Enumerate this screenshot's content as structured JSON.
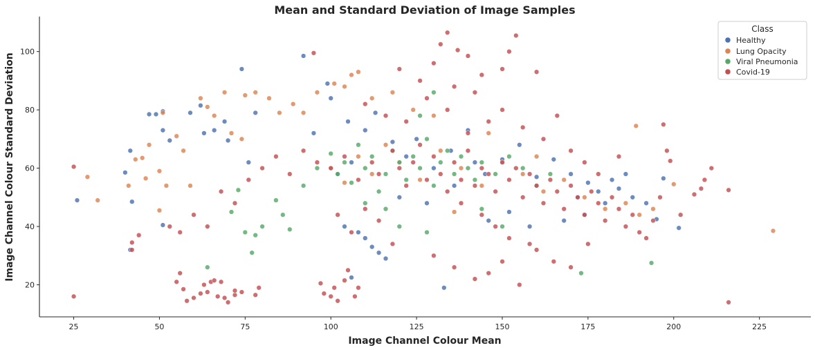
{
  "chart_data": {
    "type": "scatter",
    "title": "Mean and Standard Deviation of Image Samples",
    "xlabel": "Image Channel Colour Mean",
    "ylabel": "Image Channel Colour Standard Deviation",
    "xlim": [
      15,
      240
    ],
    "ylim": [
      9,
      112
    ],
    "x_ticks": [
      25,
      50,
      75,
      100,
      125,
      150,
      175,
      200,
      225
    ],
    "y_ticks": [
      20,
      40,
      60,
      80,
      100
    ],
    "grid": false,
    "legend": {
      "title": "Class",
      "placement": "top-right",
      "entries": [
        "Healthy",
        "Lung Opacity",
        "Viral Pneumonia",
        "Covid-19"
      ]
    },
    "series": [
      {
        "name": "Healthy",
        "color": "#4c72b0",
        "points": [
          [
            26,
            49
          ],
          [
            40,
            58.5
          ],
          [
            41.5,
            66
          ],
          [
            42,
            48.5
          ],
          [
            41.5,
            32
          ],
          [
            47,
            78.5
          ],
          [
            49,
            78.5
          ],
          [
            51,
            79.5
          ],
          [
            51,
            73
          ],
          [
            51,
            40.5
          ],
          [
            53,
            69.5
          ],
          [
            59,
            79
          ],
          [
            62,
            81.5
          ],
          [
            63,
            72
          ],
          [
            66,
            73
          ],
          [
            69,
            76
          ],
          [
            70,
            69.5
          ],
          [
            74,
            94
          ],
          [
            76,
            62
          ],
          [
            78,
            79
          ],
          [
            92,
            98.5
          ],
          [
            99,
            89
          ],
          [
            95,
            72
          ],
          [
            100,
            84
          ],
          [
            105,
            76
          ],
          [
            102,
            58
          ],
          [
            106,
            62
          ],
          [
            110,
            73
          ],
          [
            113,
            79
          ],
          [
            118,
            69
          ],
          [
            122,
            64
          ],
          [
            125,
            70
          ],
          [
            130,
            60
          ],
          [
            135,
            66
          ],
          [
            140,
            73
          ],
          [
            145,
            58
          ],
          [
            150,
            63
          ],
          [
            155,
            68
          ],
          [
            160,
            57
          ],
          [
            165,
            63
          ],
          [
            170,
            58
          ],
          [
            175,
            55
          ],
          [
            178,
            52
          ],
          [
            180,
            48
          ],
          [
            184,
            53
          ],
          [
            188,
            50
          ],
          [
            192,
            48
          ],
          [
            195,
            42.5
          ],
          [
            201.5,
            39.5
          ],
          [
            197,
            56.5
          ],
          [
            112,
            33
          ],
          [
            114,
            31
          ],
          [
            116,
            29
          ],
          [
            110,
            36
          ],
          [
            108,
            38
          ],
          [
            104,
            40
          ],
          [
            106,
            22.5
          ],
          [
            133,
            19
          ],
          [
            146,
            42
          ],
          [
            152,
            45
          ],
          [
            158,
            40
          ],
          [
            168,
            42
          ],
          [
            172,
            50
          ],
          [
            174,
            44
          ],
          [
            182,
            56
          ],
          [
            186,
            58
          ],
          [
            120,
            50
          ],
          [
            128,
            48
          ],
          [
            136,
            54
          ],
          [
            142,
            62
          ]
        ]
      },
      {
        "name": "Lung Opacity",
        "color": "#dd8452",
        "points": [
          [
            29,
            57
          ],
          [
            32,
            49
          ],
          [
            41,
            54
          ],
          [
            43,
            63
          ],
          [
            45,
            63.5
          ],
          [
            46,
            56.5
          ],
          [
            47,
            68
          ],
          [
            50,
            59
          ],
          [
            50,
            45.5
          ],
          [
            51,
            79
          ],
          [
            52,
            54
          ],
          [
            55,
            71
          ],
          [
            57,
            66
          ],
          [
            59,
            54
          ],
          [
            62,
            84
          ],
          [
            64,
            81
          ],
          [
            66,
            78
          ],
          [
            69,
            86
          ],
          [
            71,
            72
          ],
          [
            74,
            70
          ],
          [
            75,
            85
          ],
          [
            78,
            86
          ],
          [
            82,
            84
          ],
          [
            85,
            79
          ],
          [
            89,
            82
          ],
          [
            92,
            79
          ],
          [
            96,
            86
          ],
          [
            101,
            89
          ],
          [
            104,
            88
          ],
          [
            106,
            92
          ],
          [
            108,
            93
          ],
          [
            112,
            84
          ],
          [
            118,
            86
          ],
          [
            124,
            80
          ],
          [
            130,
            78
          ],
          [
            100,
            60
          ],
          [
            104,
            55
          ],
          [
            108,
            64
          ],
          [
            112,
            58
          ],
          [
            116,
            68
          ],
          [
            120,
            62
          ],
          [
            126,
            56
          ],
          [
            132,
            66
          ],
          [
            138,
            60
          ],
          [
            144,
            54
          ],
          [
            150,
            62
          ],
          [
            156,
            58
          ],
          [
            162,
            52
          ],
          [
            168,
            56
          ],
          [
            174,
            50
          ],
          [
            180,
            46
          ],
          [
            186,
            48
          ],
          [
            190,
            44
          ],
          [
            194,
            46
          ],
          [
            200,
            54.5
          ],
          [
            229,
            38.5
          ],
          [
            189,
            74.5
          ],
          [
            160,
            64
          ],
          [
            146,
            72
          ],
          [
            136,
            45
          ]
        ]
      },
      {
        "name": "Viral Pneumonia",
        "color": "#55a868",
        "points": [
          [
            64,
            26
          ],
          [
            71,
            45
          ],
          [
            73,
            52.5
          ],
          [
            75,
            38
          ],
          [
            77,
            31
          ],
          [
            78,
            37
          ],
          [
            80,
            40
          ],
          [
            84,
            49
          ],
          [
            86,
            44
          ],
          [
            88,
            39
          ],
          [
            92,
            54
          ],
          [
            96,
            60
          ],
          [
            100,
            65
          ],
          [
            102,
            58
          ],
          [
            104,
            62
          ],
          [
            106,
            55
          ],
          [
            108,
            68
          ],
          [
            110,
            60
          ],
          [
            112,
            64
          ],
          [
            114,
            52
          ],
          [
            116,
            58
          ],
          [
            118,
            66
          ],
          [
            120,
            62
          ],
          [
            122,
            56
          ],
          [
            124,
            64
          ],
          [
            126,
            60
          ],
          [
            128,
            70
          ],
          [
            130,
            54
          ],
          [
            132,
            62
          ],
          [
            134,
            66
          ],
          [
            136,
            58
          ],
          [
            138,
            64
          ],
          [
            140,
            60
          ],
          [
            142,
            56
          ],
          [
            144,
            62
          ],
          [
            148,
            58
          ],
          [
            152,
            64
          ],
          [
            156,
            60
          ],
          [
            160,
            54
          ],
          [
            164,
            58
          ],
          [
            173,
            24
          ],
          [
            193.5,
            27.5
          ],
          [
            126,
            78
          ],
          [
            130,
            86
          ],
          [
            116,
            46
          ],
          [
            110,
            48
          ],
          [
            120,
            40
          ],
          [
            128,
            38
          ],
          [
            144,
            46
          ],
          [
            150,
            40
          ]
        ]
      },
      {
        "name": "Covid-19",
        "color": "#c44e52",
        "points": [
          [
            25,
            60.5
          ],
          [
            25,
            16
          ],
          [
            42,
            32
          ],
          [
            42,
            34.5
          ],
          [
            44,
            37
          ],
          [
            53,
            40
          ],
          [
            55,
            21
          ],
          [
            56,
            24
          ],
          [
            57,
            18.5
          ],
          [
            58,
            14.5
          ],
          [
            60,
            15.5
          ],
          [
            62,
            17
          ],
          [
            63,
            20
          ],
          [
            64,
            17.5
          ],
          [
            65,
            21
          ],
          [
            66,
            21.5
          ],
          [
            67,
            16
          ],
          [
            68,
            21
          ],
          [
            69,
            15.5
          ],
          [
            70,
            14
          ],
          [
            72,
            16.5
          ],
          [
            74,
            17.5
          ],
          [
            78,
            16.5
          ],
          [
            79,
            19
          ],
          [
            72,
            18
          ],
          [
            56,
            38
          ],
          [
            60,
            44
          ],
          [
            64,
            40
          ],
          [
            68,
            52
          ],
          [
            72,
            48
          ],
          [
            76,
            56
          ],
          [
            80,
            60
          ],
          [
            84,
            64
          ],
          [
            88,
            58
          ],
          [
            92,
            66
          ],
          [
            96,
            62
          ],
          [
            97,
            20.5
          ],
          [
            98,
            17
          ],
          [
            100,
            16
          ],
          [
            101,
            19
          ],
          [
            102,
            14.5
          ],
          [
            104,
            21.5
          ],
          [
            105,
            25
          ],
          [
            107,
            16
          ],
          [
            108,
            19
          ],
          [
            95,
            99.5
          ],
          [
            130,
            96
          ],
          [
            132,
            102.5
          ],
          [
            134,
            106.5
          ],
          [
            137,
            100.5
          ],
          [
            140,
            98.5
          ],
          [
            154,
            105.5
          ],
          [
            152,
            100
          ],
          [
            144,
            92
          ],
          [
            150,
            94
          ],
          [
            160,
            93
          ],
          [
            120,
            94
          ],
          [
            126,
            90
          ],
          [
            136,
            88
          ],
          [
            142,
            86
          ],
          [
            100,
            60
          ],
          [
            104,
            64
          ],
          [
            108,
            56
          ],
          [
            112,
            62
          ],
          [
            114,
            58
          ],
          [
            118,
            66
          ],
          [
            120,
            60
          ],
          [
            122,
            54
          ],
          [
            124,
            62
          ],
          [
            126,
            68
          ],
          [
            128,
            56
          ],
          [
            130,
            64
          ],
          [
            132,
            58
          ],
          [
            134,
            52
          ],
          [
            136,
            62
          ],
          [
            138,
            56
          ],
          [
            140,
            66
          ],
          [
            142,
            54
          ],
          [
            144,
            60
          ],
          [
            146,
            58
          ],
          [
            148,
            52
          ],
          [
            150,
            62
          ],
          [
            152,
            56
          ],
          [
            154,
            60
          ],
          [
            156,
            50
          ],
          [
            158,
            58
          ],
          [
            160,
            54
          ],
          [
            162,
            48
          ],
          [
            164,
            56
          ],
          [
            166,
            52
          ],
          [
            168,
            46
          ],
          [
            170,
            54
          ],
          [
            172,
            50
          ],
          [
            174,
            44
          ],
          [
            176,
            52
          ],
          [
            178,
            48
          ],
          [
            180,
            42
          ],
          [
            182,
            50
          ],
          [
            184,
            46
          ],
          [
            186,
            40
          ],
          [
            188,
            44
          ],
          [
            190,
            38
          ],
          [
            192,
            36
          ],
          [
            194,
            42
          ],
          [
            196,
            50
          ],
          [
            197,
            75
          ],
          [
            198,
            66
          ],
          [
            199,
            62.5
          ],
          [
            206,
            51
          ],
          [
            208,
            53
          ],
          [
            209,
            56
          ],
          [
            211,
            60
          ],
          [
            216,
            52.5
          ],
          [
            216,
            14
          ],
          [
            202,
            44
          ],
          [
            130,
            30
          ],
          [
            136,
            26
          ],
          [
            142,
            22
          ],
          [
            146,
            24
          ],
          [
            150,
            28
          ],
          [
            155,
            20
          ],
          [
            160,
            32
          ],
          [
            165,
            28
          ],
          [
            170,
            26
          ],
          [
            175,
            34
          ],
          [
            118,
            34
          ],
          [
            114,
            42
          ],
          [
            110,
            46
          ],
          [
            106,
            38
          ],
          [
            102,
            44
          ],
          [
            140,
            72
          ],
          [
            146,
            76
          ],
          [
            150,
            80
          ],
          [
            156,
            74
          ],
          [
            162,
            70
          ],
          [
            166,
            78
          ],
          [
            170,
            66
          ],
          [
            174,
            62
          ],
          [
            178,
            58
          ],
          [
            184,
            64
          ],
          [
            128,
            84
          ],
          [
            134,
            80
          ],
          [
            122,
            76
          ],
          [
            116,
            78
          ],
          [
            110,
            82
          ],
          [
            138,
            48
          ],
          [
            144,
            44
          ],
          [
            148,
            40
          ],
          [
            152,
            36
          ],
          [
            158,
            34
          ]
        ]
      }
    ]
  }
}
